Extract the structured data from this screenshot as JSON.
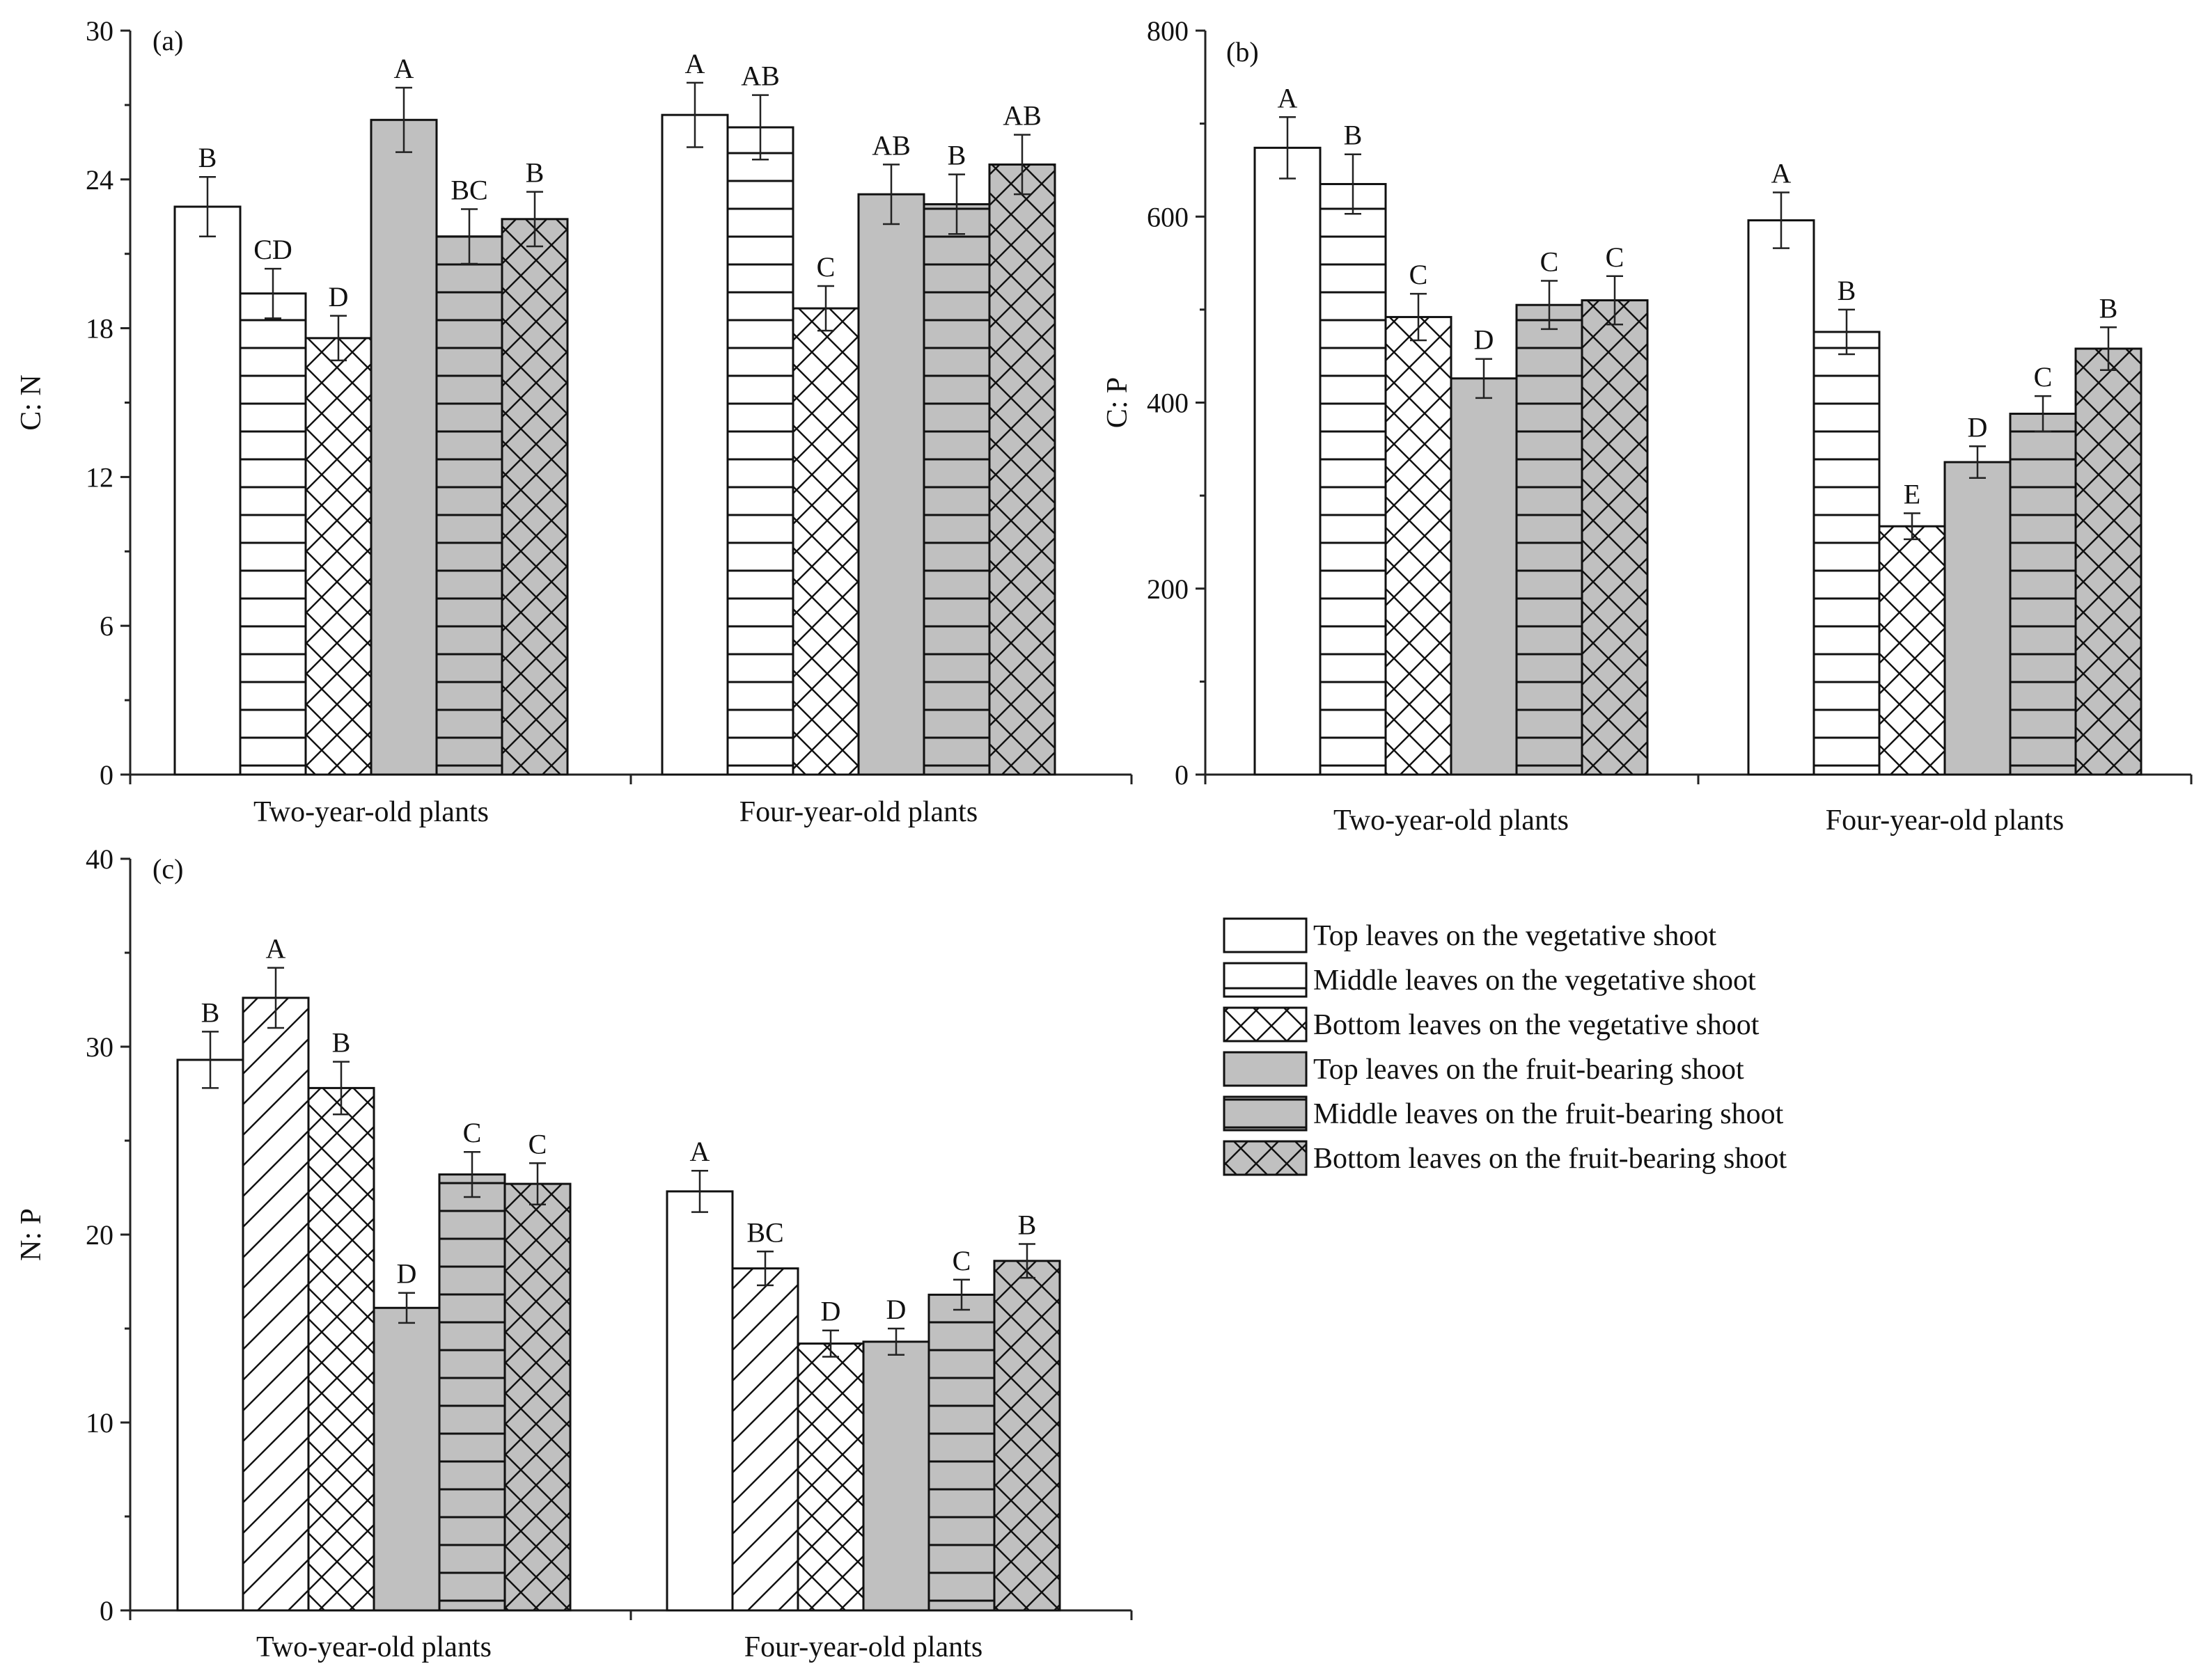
{
  "series_styles": [
    {
      "name": "Top leaves on the vegetative shoot",
      "fill": "#ffffff",
      "pattern": "none"
    },
    {
      "name": "Middle leaves on the vegetative shoot",
      "fill": "#ffffff",
      "pattern": "horizontal-lines"
    },
    {
      "name": "Bottom leaves on the vegetative shoot",
      "fill": "#ffffff",
      "pattern": "crosshatch"
    },
    {
      "name": "Top leaves on the fruit-bearing shoot",
      "fill": "#c0c0c0",
      "pattern": "none"
    },
    {
      "name": "Middle leaves on the fruit-bearing shoot",
      "fill": "#c0c0c0",
      "pattern": "horizontal-lines"
    },
    {
      "name": "Bottom leaves on the fruit-bearing shoot",
      "fill": "#c0c0c0",
      "pattern": "crosshatch"
    }
  ],
  "legend": {
    "items": [
      "Top leaves on the vegetative shoot",
      "Middle leaves on the vegetative shoot",
      "Bottom leaves on the vegetative shoot",
      "Top leaves on the fruit-bearing shoot",
      "Middle leaves on the fruit-bearing shoot",
      "Bottom leaves on the fruit-bearing shoot"
    ]
  },
  "chart_data": [
    {
      "panel": "(a)",
      "type": "bar",
      "ylabel": "C: N",
      "ylim": [
        0,
        30
      ],
      "yticks": [
        "0",
        "6",
        "12",
        "18",
        "24",
        "30"
      ],
      "categories": [
        "Two-year-old plants",
        "Four-year-old plants"
      ],
      "series": [
        {
          "name": "Top leaves on the vegetative shoot",
          "values": [
            22.9,
            26.6
          ],
          "errors": [
            1.2,
            1.3
          ],
          "letters": [
            "B",
            "A"
          ]
        },
        {
          "name": "Middle leaves on the vegetative shoot",
          "values": [
            19.4,
            26.1
          ],
          "errors": [
            1.0,
            1.3
          ],
          "letters": [
            "CD",
            "AB"
          ]
        },
        {
          "name": "Bottom leaves on the vegetative shoot",
          "values": [
            17.6,
            18.8
          ],
          "errors": [
            0.9,
            0.9
          ],
          "letters": [
            "D",
            "C"
          ]
        },
        {
          "name": "Top leaves on the fruit-bearing shoot",
          "values": [
            26.4,
            23.4
          ],
          "errors": [
            1.3,
            1.2
          ],
          "letters": [
            "A",
            "AB"
          ]
        },
        {
          "name": "Middle leaves on the fruit-bearing shoot",
          "values": [
            21.7,
            23.0
          ],
          "errors": [
            1.1,
            1.2
          ],
          "letters": [
            "BC",
            "B"
          ]
        },
        {
          "name": "Bottom leaves on the fruit-bearing shoot",
          "values": [
            22.4,
            24.6
          ],
          "errors": [
            1.1,
            1.2
          ],
          "letters": [
            "B",
            "AB"
          ]
        }
      ]
    },
    {
      "panel": "(b)",
      "type": "bar",
      "ylabel": "C: P",
      "ylim": [
        0,
        800
      ],
      "yticks": [
        "0",
        "200",
        "400",
        "600",
        "800"
      ],
      "categories": [
        "Two-year-old plants",
        "Four-year-old plants"
      ],
      "series": [
        {
          "name": "Top leaves on the vegetative shoot",
          "values": [
            674,
            596
          ],
          "errors": [
            33,
            30
          ],
          "letters": [
            "A",
            "A"
          ]
        },
        {
          "name": "Middle leaves on the vegetative shoot",
          "values": [
            635,
            476
          ],
          "errors": [
            32,
            24
          ],
          "letters": [
            "B",
            "B"
          ]
        },
        {
          "name": "Bottom leaves on the vegetative shoot",
          "values": [
            492,
            267
          ],
          "errors": [
            25,
            14
          ],
          "letters": [
            "C",
            "E"
          ]
        },
        {
          "name": "Top leaves on the fruit-bearing shoot",
          "values": [
            426,
            336
          ],
          "errors": [
            21,
            17
          ],
          "letters": [
            "D",
            "D"
          ]
        },
        {
          "name": "Middle leaves on the fruit-bearing shoot",
          "values": [
            505,
            388
          ],
          "errors": [
            26,
            19
          ],
          "letters": [
            "C",
            "C"
          ]
        },
        {
          "name": "Bottom leaves on the fruit-bearing shoot",
          "values": [
            510,
            458
          ],
          "errors": [
            26,
            23
          ],
          "letters": [
            "C",
            "B"
          ]
        }
      ]
    },
    {
      "panel": "(c)",
      "type": "bar",
      "ylabel": "N: P",
      "ylim": [
        0,
        40
      ],
      "yticks": [
        "0",
        "10",
        "20",
        "30",
        "40"
      ],
      "categories": [
        "Two-year-old plants",
        "Four-year-old plants"
      ],
      "series": [
        {
          "name": "Top leaves on the vegetative shoot",
          "values": [
            29.3,
            22.3
          ],
          "errors": [
            1.5,
            1.1
          ],
          "letters": [
            "B",
            "A"
          ]
        },
        {
          "name": "Middle leaves on the vegetative shoot",
          "values": [
            32.6,
            18.2
          ],
          "errors": [
            1.6,
            0.9
          ],
          "letters": [
            "A",
            "BC"
          ],
          "pattern_override": "diagonal-lines"
        },
        {
          "name": "Bottom leaves on the vegetative shoot",
          "values": [
            27.8,
            14.2
          ],
          "errors": [
            1.4,
            0.7
          ],
          "letters": [
            "B",
            "D"
          ]
        },
        {
          "name": "Top leaves on the fruit-bearing shoot",
          "values": [
            16.1,
            14.3
          ],
          "errors": [
            0.8,
            0.7
          ],
          "letters": [
            "D",
            "D"
          ]
        },
        {
          "name": "Middle leaves on the fruit-bearing shoot",
          "values": [
            23.2,
            16.8
          ],
          "errors": [
            1.2,
            0.8
          ],
          "letters": [
            "C",
            "C"
          ]
        },
        {
          "name": "Bottom leaves on the fruit-bearing shoot",
          "values": [
            22.7,
            18.6
          ],
          "errors": [
            1.1,
            0.9
          ],
          "letters": [
            "C",
            "B"
          ]
        }
      ]
    }
  ]
}
